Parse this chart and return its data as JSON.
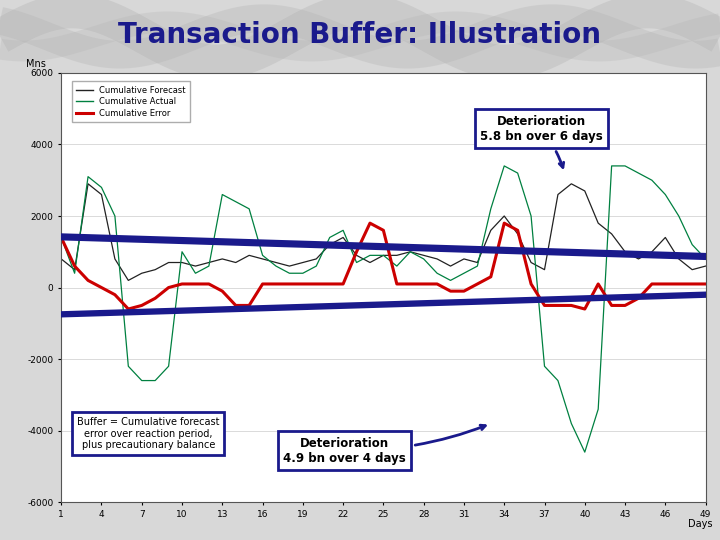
{
  "title": "Transaction Buffer: Illustration",
  "title_color": "#1a1a8c",
  "title_fontsize": 20,
  "ylabel": "Mns",
  "xlabel": "Days",
  "ylim": [
    -6000,
    6000
  ],
  "yticks": [
    -6000,
    -4000,
    -2000,
    0,
    2000,
    4000,
    6000
  ],
  "xtick_vals": [
    1,
    4,
    7,
    10,
    13,
    16,
    19,
    22,
    25,
    28,
    31,
    34,
    37,
    40,
    43,
    46,
    49
  ],
  "legend_labels": [
    "Cumulative Forecast",
    "Cumulative Actual",
    "Cumulative Error"
  ],
  "annotation1_text": "Deterioration\n5.8 bn over 6 days",
  "annotation2_text": "Deterioration\n4.9 bn over 4 days",
  "buffer_text": "Buffer = Cumulative forecast\nerror over reaction period,\nplus precautionary balance",
  "cum_forecast": [
    800,
    500,
    2900,
    2600,
    800,
    200,
    400,
    500,
    700,
    700,
    600,
    700,
    800,
    700,
    900,
    800,
    700,
    600,
    700,
    800,
    1200,
    1400,
    900,
    700,
    900,
    900,
    1000,
    900,
    800,
    600,
    800,
    700,
    1600,
    2000,
    1500,
    700,
    500,
    2600,
    2900,
    2700,
    1800,
    1500,
    1000,
    800,
    1000,
    1400,
    800,
    500,
    600
  ],
  "cum_actual": [
    1400,
    400,
    3100,
    2800,
    2000,
    -2200,
    -2600,
    -2600,
    -2200,
    1000,
    400,
    600,
    2600,
    2400,
    2200,
    900,
    600,
    400,
    400,
    600,
    1400,
    1600,
    700,
    900,
    900,
    600,
    1000,
    800,
    400,
    200,
    400,
    600,
    2200,
    3400,
    3200,
    2000,
    -2200,
    -2600,
    -3800,
    -4600,
    -3400,
    3400,
    3400,
    3200,
    3000,
    2600,
    2000,
    1200,
    800
  ],
  "cum_error": [
    1400,
    600,
    200,
    0,
    -200,
    -600,
    -500,
    -300,
    0,
    100,
    100,
    100,
    -100,
    -500,
    -500,
    100,
    100,
    100,
    100,
    100,
    100,
    100,
    1000,
    1800,
    1600,
    100,
    100,
    100,
    100,
    -100,
    -100,
    100,
    300,
    1800,
    1600,
    100,
    -500,
    -500,
    -500,
    -600,
    100,
    -500,
    -500,
    -300,
    100,
    100,
    100,
    100,
    100
  ]
}
